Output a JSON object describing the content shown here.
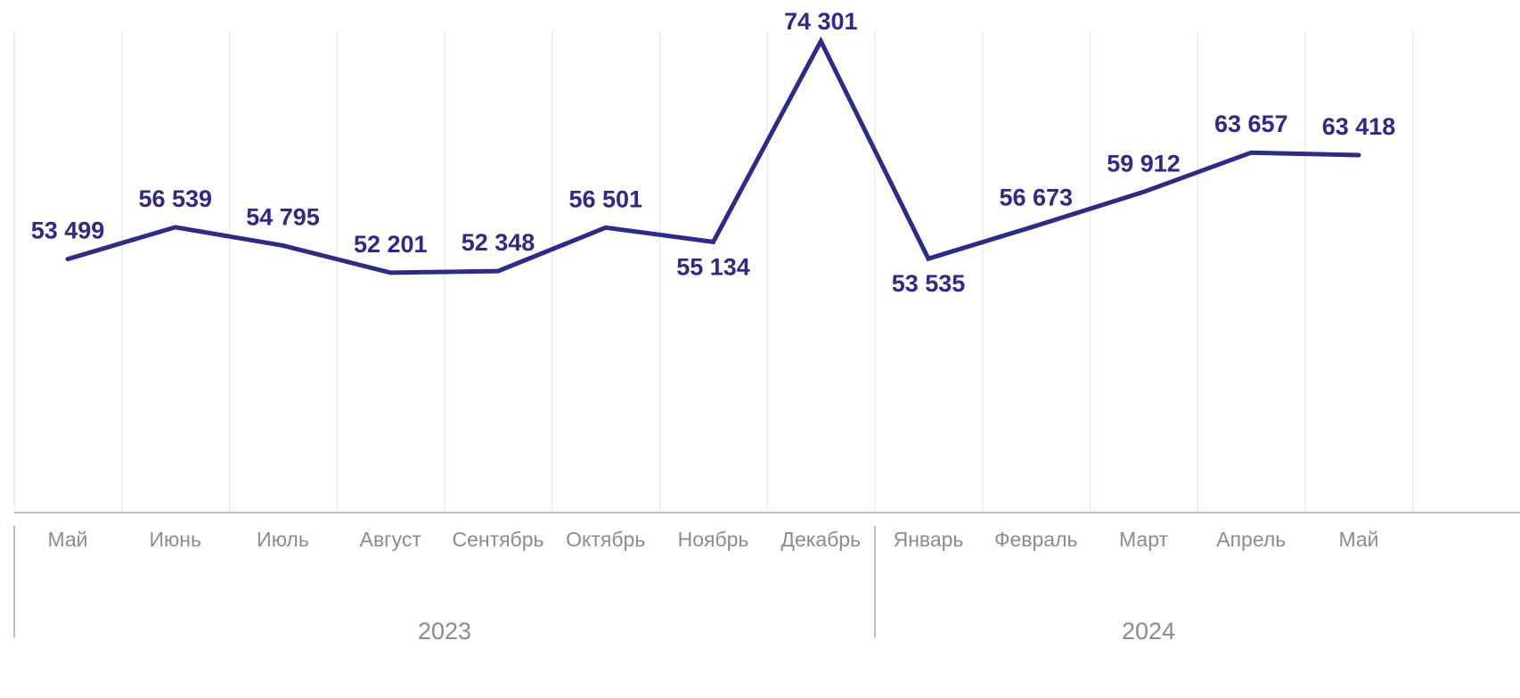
{
  "chart_data": {
    "type": "line",
    "title": "",
    "xlabel": "",
    "ylabel": "",
    "categories": [
      "Май",
      "Июнь",
      "Июль",
      "Август",
      "Сентябрь",
      "Октябрь",
      "Ноябрь",
      "Декабрь",
      "Январь",
      "Февраль",
      "Март",
      "Апрель",
      "Май"
    ],
    "year_groups": [
      {
        "label": "2023",
        "start": 0,
        "end": 7
      },
      {
        "label": "2024",
        "start": 8,
        "end": 12
      }
    ],
    "series": [
      {
        "values": [
          53499,
          56539,
          54795,
          52201,
          52348,
          56501,
          55134,
          74301,
          53535,
          56673,
          59912,
          63657,
          63418
        ],
        "labels": [
          "53 499",
          "56 539",
          "54 795",
          "52 201",
          "52 348",
          "56 501",
          "55 134",
          "74 301",
          "53 535",
          "56 673",
          "59 912",
          "63 657",
          "63 418"
        ],
        "label_positions": [
          "above",
          "above",
          "above",
          "above",
          "above",
          "above",
          "below",
          "above",
          "below",
          "above",
          "above",
          "above",
          "above"
        ]
      }
    ],
    "ylim": [
      29300,
      75250
    ],
    "grid": {
      "vertical": true,
      "horizontal": false
    },
    "legend": "none",
    "colors": {
      "line": "#2e2a8c",
      "grid": "#e6e6e6",
      "axis": "#bfbfbf",
      "label": "#2e2a8c",
      "tick_text": "#8c8c8c"
    }
  }
}
